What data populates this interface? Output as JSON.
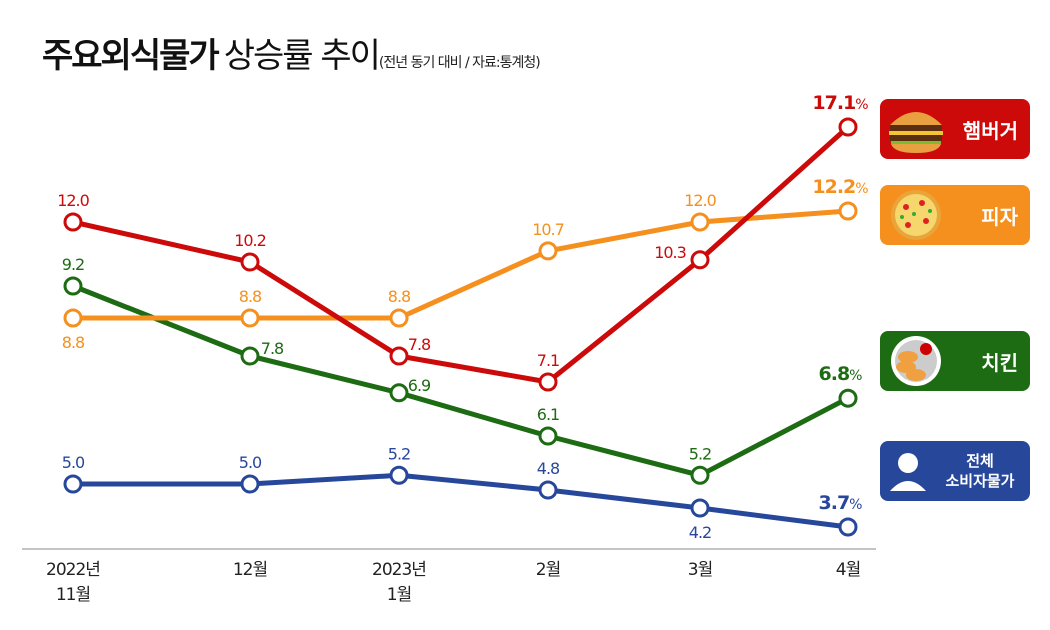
{
  "title": {
    "bold": "주요외식물가",
    "regular": "상승률 추이",
    "sub": "(전년 동기 대비 / 자료:통계청)"
  },
  "chart_data": {
    "type": "line",
    "title": "주요외식물가 상승률 추이",
    "categories": [
      "2022년 11월",
      "12월",
      "2023년 1월",
      "2월",
      "3월",
      "4월"
    ],
    "category_lines": [
      [
        "2022년",
        "11월"
      ],
      [
        "12월"
      ],
      [
        "2023년",
        "1월"
      ],
      [
        "2월"
      ],
      [
        "3월"
      ],
      [
        "4월"
      ]
    ],
    "unit": "%",
    "grid": false,
    "legend_placement": "right",
    "series": [
      {
        "name": "햄버거",
        "color": "#cc0a0a",
        "icon": "hamburger-icon",
        "values": [
          12.0,
          10.2,
          7.8,
          7.1,
          10.3,
          17.1
        ]
      },
      {
        "name": "피자",
        "color": "#f5901e",
        "icon": "pizza-icon",
        "values": [
          8.8,
          8.8,
          8.8,
          10.7,
          12.0,
          12.2
        ]
      },
      {
        "name": "치킨",
        "color": "#1d6b12",
        "icon": "chicken-icon",
        "values": [
          9.2,
          7.8,
          6.9,
          6.1,
          5.2,
          6.8
        ]
      },
      {
        "name": "전체 소비자물가",
        "name_lines": [
          "전체",
          "소비자물가"
        ],
        "color": "#27479b",
        "icon": "person-icon",
        "values": [
          5.0,
          5.0,
          5.2,
          4.8,
          4.2,
          3.7
        ]
      }
    ]
  }
}
